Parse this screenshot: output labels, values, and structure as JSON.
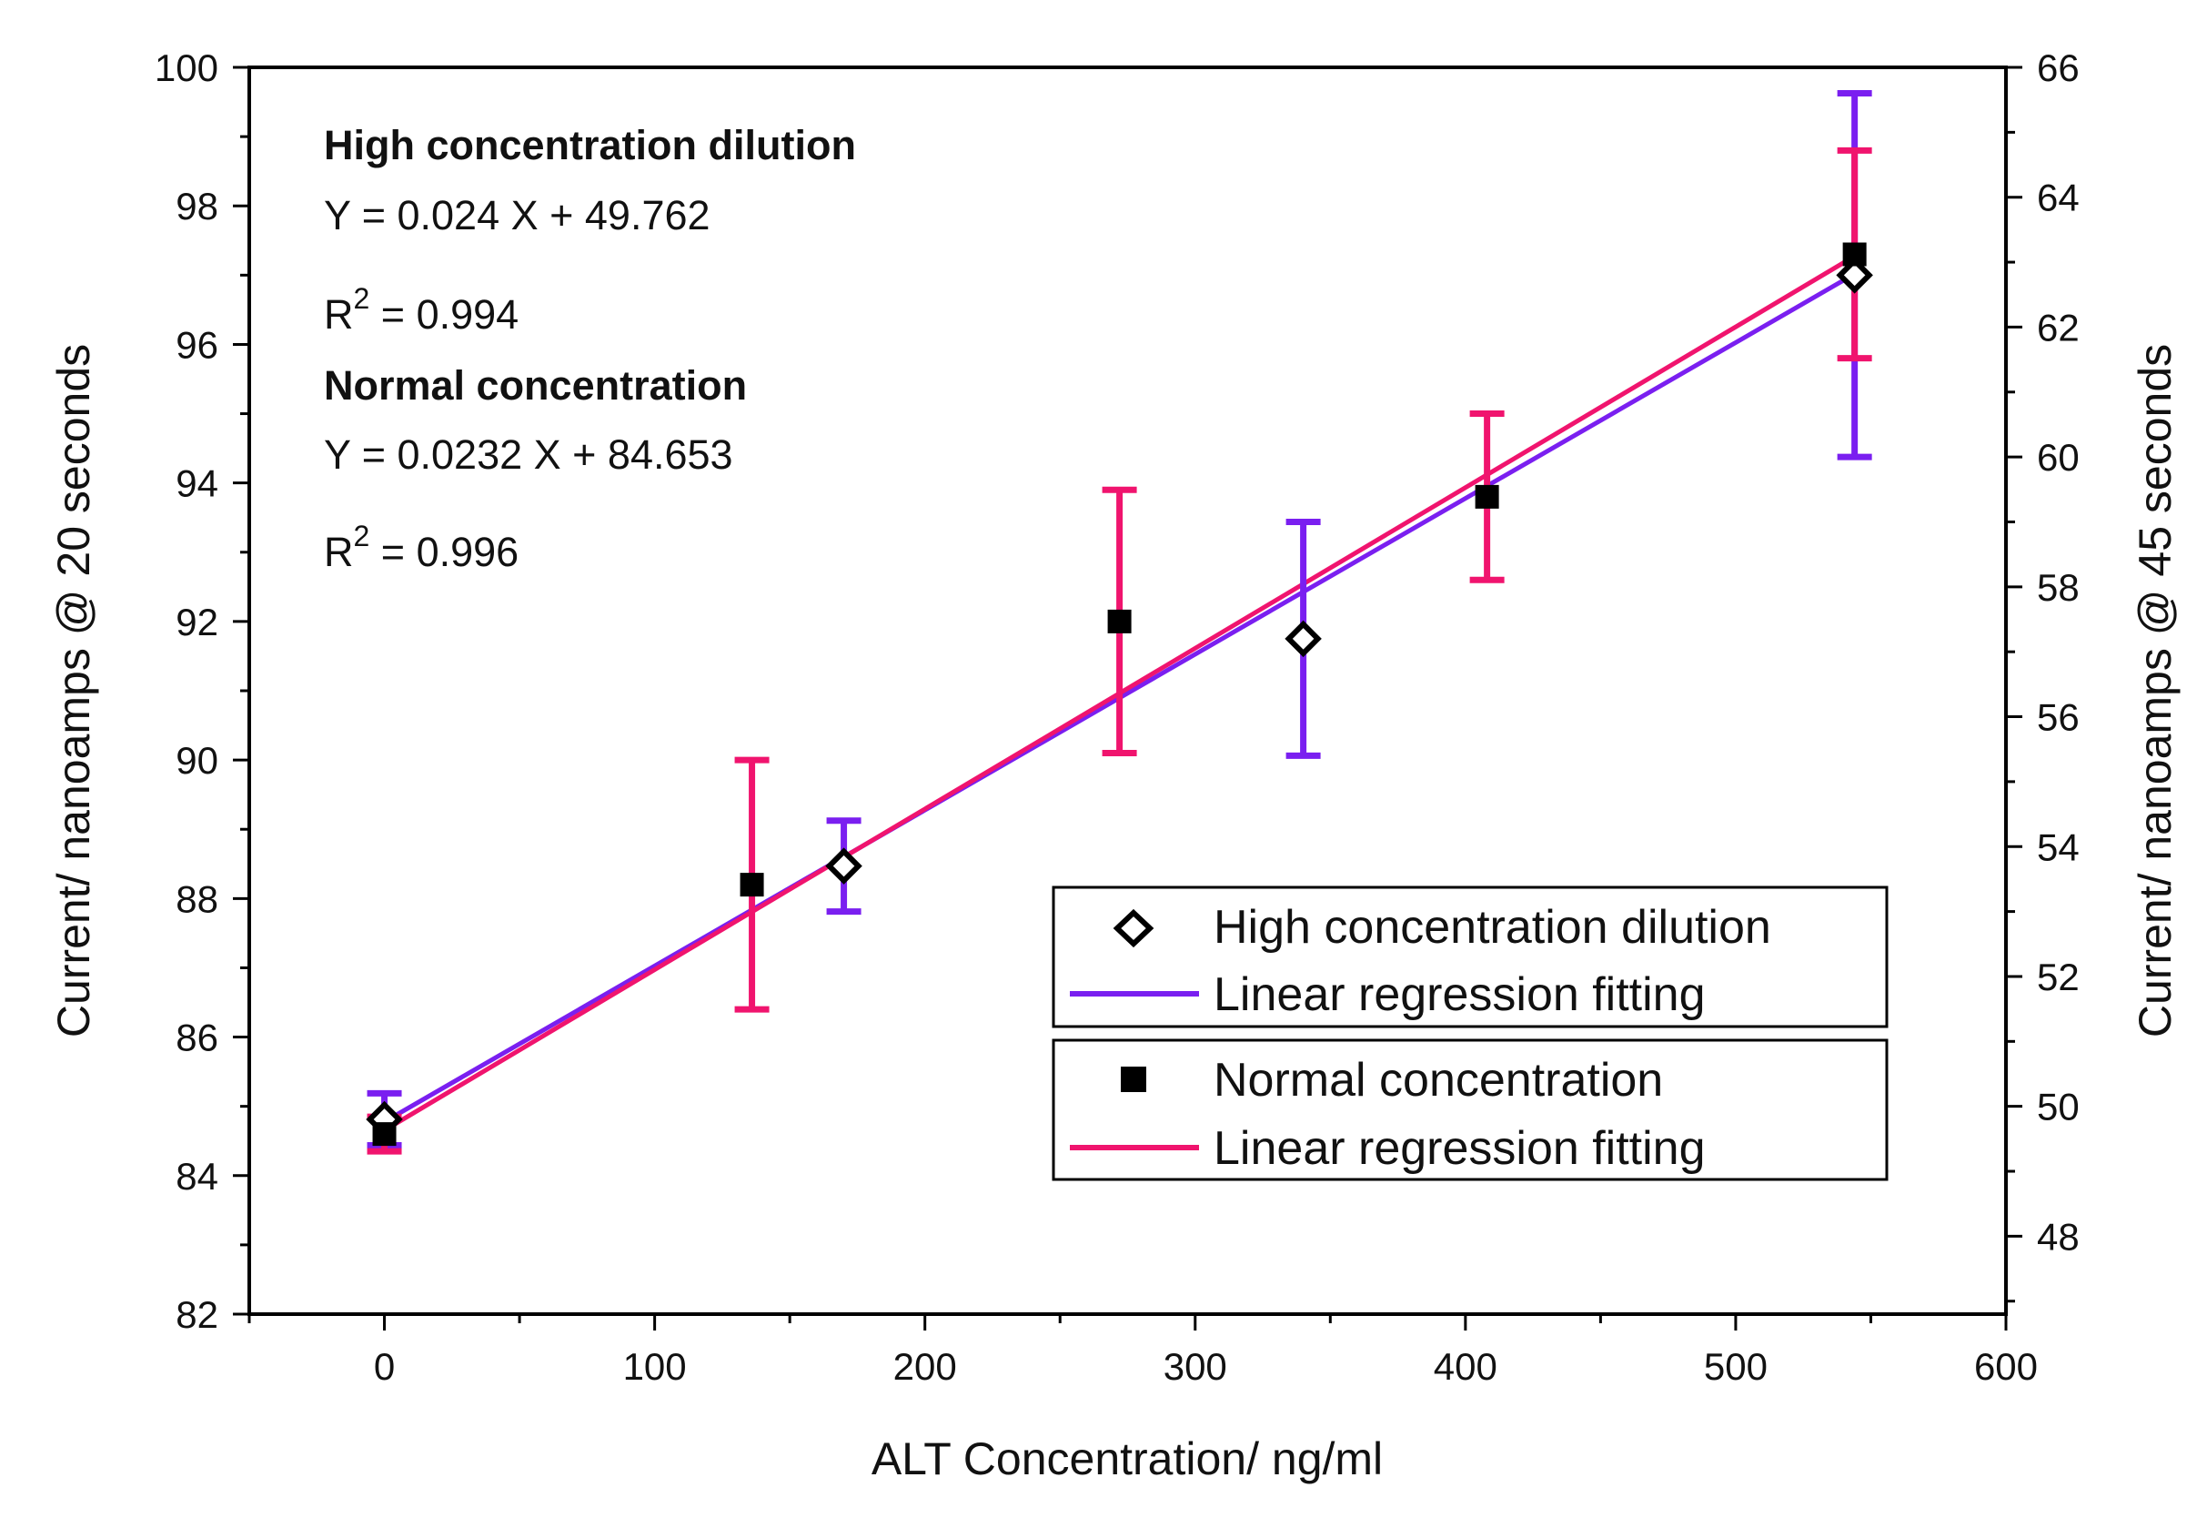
{
  "chart_data": {
    "type": "scatter",
    "title": "",
    "xlabel": "ALT Concentration/ ng/ml",
    "ylabel_left": "Current/ nanoamps @ 20 seconds",
    "ylabel_right": "Current/ nanoamps @ 45 seconds",
    "xlim": [
      -50,
      600
    ],
    "ylim_left": [
      82,
      100
    ],
    "ylim_right": [
      46.8,
      66
    ],
    "x_ticks": [
      0,
      100,
      200,
      300,
      400,
      500,
      600
    ],
    "x_tick_labels": [
      "0",
      "100",
      "200",
      "300",
      "400",
      "500",
      "600"
    ],
    "y_left_ticks": [
      82,
      84,
      86,
      88,
      90,
      92,
      94,
      96,
      98,
      100
    ],
    "y_left_tick_labels": [
      "82",
      "84",
      "86",
      "88",
      "90",
      "92",
      "94",
      "96",
      "98",
      "100"
    ],
    "y_right_ticks": [
      48,
      50,
      52,
      54,
      56,
      58,
      60,
      62,
      64,
      66
    ],
    "y_right_tick_labels": [
      "48",
      "50",
      "52",
      "54",
      "56",
      "58",
      "60",
      "62",
      "64",
      "66"
    ],
    "grid": false,
    "series": [
      {
        "name": "High concentration dilution",
        "axis": "right",
        "marker": "open-diamond",
        "color": "#7a1ff0",
        "x": [
          0,
          170,
          340,
          544
        ],
        "y": [
          49.8,
          53.7,
          57.2,
          62.8
        ],
        "err": [
          0.4,
          0.7,
          1.8,
          2.8
        ]
      },
      {
        "name": "Normal concentration",
        "axis": "left",
        "marker": "filled-square",
        "color": "#f0146e",
        "x": [
          0,
          136,
          272,
          408,
          544
        ],
        "y": [
          84.6,
          88.2,
          92.0,
          93.8,
          97.3
        ],
        "err": [
          0.25,
          1.8,
          1.9,
          1.2,
          1.5
        ]
      }
    ],
    "fits": [
      {
        "name": "Linear regression fitting",
        "for": "High concentration dilution",
        "axis": "right",
        "slope": 0.024,
        "intercept": 49.762,
        "x_range": [
          0,
          544
        ],
        "color": "#7a1ff0"
      },
      {
        "name": "Linear regression fitting",
        "for": "Normal concentration",
        "axis": "left",
        "slope": 0.0232,
        "intercept": 84.653,
        "x_range": [
          0,
          544
        ],
        "color": "#f0146e"
      }
    ],
    "annotations": {
      "high_title": "High concentration dilution",
      "high_eq": "Y = 0.024 X + 49.762",
      "high_r2_prefix": "R",
      "high_r2_sup": "2",
      "high_r2_value": " = 0.994",
      "normal_title": "Normal concentration",
      "normal_eq": "Y = 0.0232 X + 84.653",
      "normal_r2_prefix": "R",
      "normal_r2_sup": "2",
      "normal_r2_value": " = 0.996"
    },
    "legend": {
      "placement": "bottom-right",
      "box1": [
        "High concentration dilution",
        "Linear regression fitting"
      ],
      "box2": [
        "Normal concentration",
        "Linear regression fitting"
      ]
    }
  }
}
